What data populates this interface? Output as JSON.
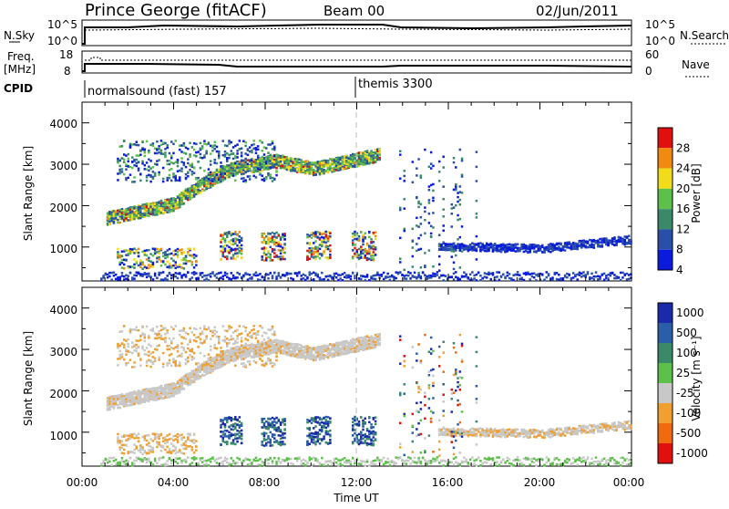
{
  "header": {
    "station": "Prince George (fitACF)",
    "beam": "Beam 00",
    "date": "02/Jun/2011"
  },
  "noise_panel": {
    "left_label": "N.Sky",
    "right_label": "N.Search",
    "left_ticks": [
      "10^5",
      "10^0"
    ],
    "right_ticks": [
      "10^5",
      "10^0"
    ]
  },
  "freq_panel": {
    "left_label_1": "Freq.",
    "left_label_2": "[MHz]",
    "left_ticks": [
      "18",
      "8"
    ],
    "right_label": "Nave",
    "right_ticks": [
      "60",
      "0"
    ]
  },
  "cpid_panel": {
    "label": "CPID",
    "programs": [
      "normalsound (fast) 157",
      "themis 3300"
    ]
  },
  "power_panel": {
    "ylabel": "Slant Range [km]",
    "yticks": [
      "4000",
      "3000",
      "2000",
      "1000"
    ],
    "colorbar_label": "Power [dB]",
    "colorbar_ticks": [
      "28",
      "24",
      "20",
      "16",
      "12",
      "8",
      "4"
    ],
    "colors": [
      "#0a1bdc",
      "#2a4fa8",
      "#3a8a6a",
      "#5cc04a",
      "#f0dc1a",
      "#f08a10",
      "#e01010"
    ]
  },
  "velocity_panel": {
    "ylabel": "Slant Range [km]",
    "yticks": [
      "4000",
      "3000",
      "2000",
      "1000"
    ],
    "colorbar_label": "Velocity [m s⁻¹]",
    "colorbar_ticks": [
      "1000",
      "500",
      "100",
      "25",
      "-25",
      "-100",
      "-500",
      "-1000"
    ],
    "colors": [
      "#1a2aa8",
      "#2a5fa8",
      "#3a8a6a",
      "#5cc04a",
      "#c8c8c8",
      "#f0a030",
      "#f06a10",
      "#e01010"
    ]
  },
  "xaxis": {
    "ticks": [
      "00:00",
      "04:00",
      "08:00",
      "12:00",
      "16:00",
      "20:00",
      "00:00"
    ],
    "label": "Time UT"
  },
  "chart_data": {
    "type": "heatmap",
    "x_range_hours": [
      0,
      24
    ],
    "y_range_km": [
      180,
      4500
    ],
    "power_scatter_bands": [
      {
        "t_start": 1.0,
        "t_end": 10.0,
        "range_km_start": 1700,
        "range_km_end": 3000,
        "power_db": 14
      },
      {
        "t_start": 10.0,
        "t_end": 13.2,
        "range_km_start": 3000,
        "range_km_end": 3300,
        "power_db": 10
      },
      {
        "t_start": 9.0,
        "t_end": 10.5,
        "range_km_start": 800,
        "range_km_end": 1200,
        "power_db": 22
      },
      {
        "t_start": 15.5,
        "t_end": 23.8,
        "range_km_start": 900,
        "range_km_end": 1300,
        "power_db": 6
      }
    ]
  }
}
